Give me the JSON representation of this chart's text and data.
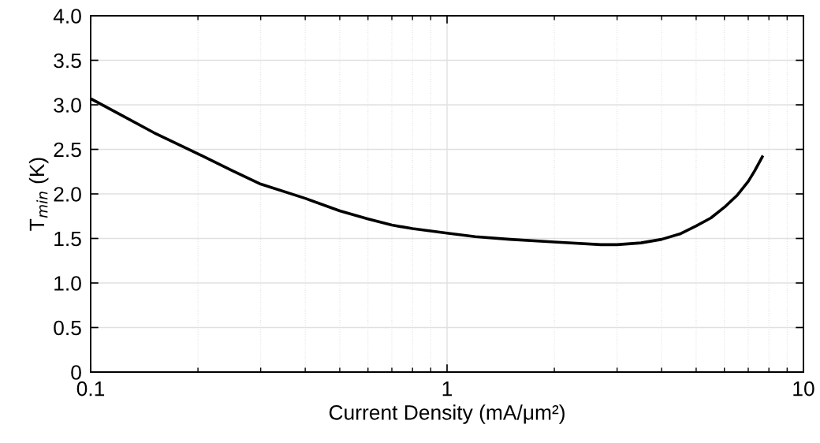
{
  "chart_data": {
    "type": "line",
    "xlabel": "Current Density (mA/μm²)",
    "ylabel": "T$_{min}$ (K)",
    "log": "x",
    "x": [
      0.1,
      0.12,
      0.15,
      0.2,
      0.25,
      0.3,
      0.4,
      0.5,
      0.6,
      0.7,
      0.8,
      1,
      1.2,
      1.5,
      2,
      2.7,
      3,
      3.5,
      4,
      4.5,
      5,
      5.5,
      6,
      6.5,
      7,
      7.3,
      7.7
    ],
    "series": [
      {
        "color": "#000000",
        "values": [
          3.07,
          2.9,
          2.69,
          2.45,
          2.26,
          2.11,
          1.95,
          1.81,
          1.72,
          1.65,
          1.61,
          1.56,
          1.52,
          1.49,
          1.46,
          1.43,
          1.43,
          1.45,
          1.49,
          1.55,
          1.64,
          1.73,
          1.85,
          1.98,
          2.14,
          2.26,
          2.43
        ]
      }
    ],
    "xlim": [
      0.1,
      10
    ],
    "xticks": [
      0.1,
      1,
      10
    ],
    "ylim": [
      0,
      4.0
    ],
    "yticks": [
      {
        "value": 0,
        "label": "0"
      },
      {
        "value": 0.5,
        "label": "0.5"
      },
      {
        "value": 1.0,
        "label": "1.0"
      },
      {
        "value": 1.5,
        "label": "1.5"
      },
      {
        "value": 2.0,
        "label": "2.0"
      },
      {
        "value": 2.5,
        "label": "2.5"
      },
      {
        "value": 3.0,
        "label": "3.0"
      },
      {
        "value": 3.5,
        "label": "3.5"
      },
      {
        "value": 4.0,
        "label": "4.0"
      }
    ],
    "grid": true,
    "marker": "none",
    "line_style": "solid"
  }
}
